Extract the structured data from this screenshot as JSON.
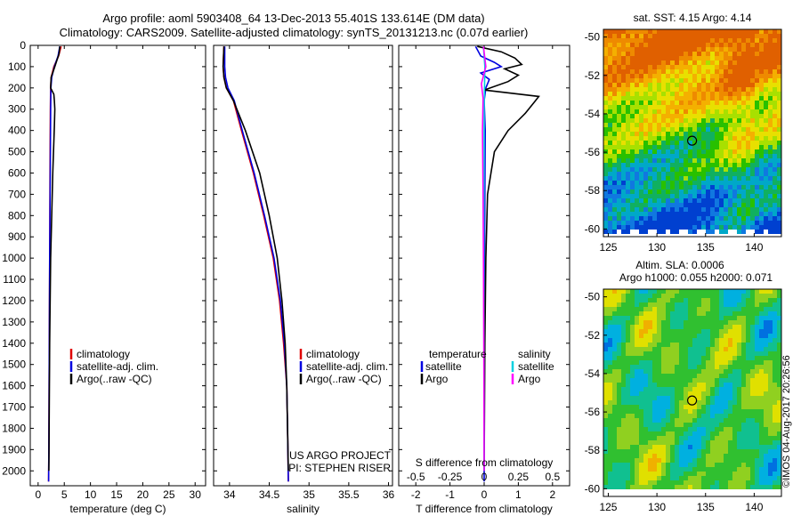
{
  "header": {
    "line1": "Argo profile: aoml 5903408_64 13-Dec-2013 55.401S 133.614E (DM data)",
    "line2": "Climatology: CARS2009. Satellite-adjusted climatology: synTS_20131213.nc (0.07d earlier)"
  },
  "stamp": "©IMOS 04-Aug-2017 20:26:56",
  "chart_data": [
    {
      "type": "line",
      "id": "temperature",
      "xlabel": "temperature (deg C)",
      "ylim": [
        2070,
        0
      ],
      "xlim": [
        -1.5,
        32
      ],
      "xticks": [
        0,
        5,
        10,
        15,
        20,
        25,
        30
      ],
      "yticks": [
        0,
        100,
        200,
        300,
        400,
        500,
        600,
        700,
        800,
        900,
        1000,
        1100,
        1200,
        1300,
        1400,
        1500,
        1600,
        1700,
        1800,
        1900,
        2000
      ],
      "legend": [
        "climatology",
        "satellite-adj. clim.",
        "Argo(..raw -QC)"
      ],
      "series": [
        {
          "name": "climatology",
          "color": "#e00000",
          "x": [
            4.4,
            3.9,
            3.0,
            2.5,
            2.4,
            2.35,
            2.3,
            2.25,
            2.2,
            2.15,
            2.1,
            2.05,
            2.0
          ],
          "y": [
            5,
            50,
            100,
            150,
            200,
            300,
            500,
            700,
            1000,
            1300,
            1600,
            1900,
            2050
          ]
        },
        {
          "name": "satellite-adj. clim.",
          "color": "#0000e0",
          "x": [
            4.15,
            3.8,
            3.1,
            2.6,
            2.45,
            2.4,
            2.35,
            2.3,
            2.2,
            2.15,
            2.1,
            2.05,
            2.0
          ],
          "y": [
            5,
            50,
            100,
            150,
            200,
            300,
            500,
            700,
            1000,
            1300,
            1600,
            1900,
            2050
          ]
        },
        {
          "name": "Argo(..raw -QC)",
          "color": "#000000",
          "x": [
            4.14,
            4.0,
            3.2,
            2.5,
            2.4,
            3.0,
            3.1,
            3.2,
            3.1,
            2.8,
            2.4,
            2.2,
            2.1,
            2.05
          ],
          "y": [
            5,
            40,
            100,
            150,
            200,
            230,
            260,
            300,
            380,
            600,
            1000,
            1400,
            1800,
            2000
          ]
        }
      ]
    },
    {
      "type": "line",
      "id": "salinity",
      "xlabel": "salinity",
      "ylim": [
        2070,
        0
      ],
      "xlim": [
        33.8,
        36.05
      ],
      "xticks": [
        34,
        34.5,
        35,
        35.5,
        36
      ],
      "legend": [
        "climatology",
        "satellite-adj. clim.",
        "Argo(..raw -QC)"
      ],
      "annotation": [
        "US ARGO PROJECT",
        "PI: STEPHEN RISER"
      ],
      "series": [
        {
          "name": "climatology",
          "color": "#e00000",
          "x": [
            33.93,
            33.92,
            33.93,
            33.96,
            34.05,
            34.15,
            34.3,
            34.43,
            34.55,
            34.63,
            34.68,
            34.72,
            34.73,
            34.74
          ],
          "y": [
            5,
            100,
            150,
            200,
            260,
            400,
            600,
            800,
            1000,
            1200,
            1400,
            1600,
            1800,
            2050
          ]
        },
        {
          "name": "satellite-adj. clim.",
          "color": "#0000e0",
          "x": [
            33.94,
            33.94,
            33.95,
            33.98,
            34.06,
            34.16,
            34.31,
            34.44,
            34.56,
            34.64,
            34.69,
            34.72,
            34.73,
            34.74
          ],
          "y": [
            5,
            100,
            150,
            200,
            260,
            400,
            600,
            800,
            1000,
            1200,
            1400,
            1600,
            1800,
            2050
          ]
        },
        {
          "name": "Argo(..raw -QC)",
          "color": "#000000",
          "x": [
            33.93,
            33.92,
            33.93,
            33.96,
            34.05,
            34.2,
            34.38,
            34.5,
            34.6,
            34.66,
            34.7,
            34.72,
            34.73,
            34.74
          ],
          "y": [
            5,
            100,
            150,
            200,
            260,
            400,
            600,
            800,
            1000,
            1200,
            1400,
            1600,
            1800,
            2000
          ]
        }
      ]
    },
    {
      "type": "line",
      "id": "difference",
      "xlabel": "T difference from climatology",
      "top_axis_label": "S difference from climatology",
      "ylim": [
        2070,
        0
      ],
      "xlim": [
        -2.5,
        2.5
      ],
      "xticks": [
        -2,
        -1,
        0,
        1,
        2
      ],
      "top_ticks": [
        -0.5,
        -0.25,
        0,
        0.25,
        0.5
      ],
      "legend_temperature": [
        "temperature",
        "satellite",
        "Argo"
      ],
      "legend_salinity": [
        "salinity",
        "satellite",
        "Argo"
      ],
      "series": [
        {
          "name": "temperature satellite",
          "color": "#0000e0",
          "x": [
            -0.25,
            -0.1,
            0.3,
            0.5,
            -0.1,
            0.15,
            0.05,
            0.0,
            0.03,
            0.02,
            0.01,
            0.0,
            0.0,
            0.0
          ],
          "y": [
            5,
            50,
            80,
            100,
            130,
            160,
            200,
            260,
            400,
            700,
            1000,
            1400,
            1800,
            2050
          ]
        },
        {
          "name": "temperature Argo",
          "color": "#000000",
          "x": [
            -0.2,
            0.5,
            0.9,
            1.1,
            0.6,
            1.0,
            0.7,
            0.0,
            1.6,
            1.5,
            1.2,
            0.7,
            0.3,
            0.1,
            0.05,
            0.02,
            0.0
          ],
          "y": [
            5,
            30,
            60,
            90,
            110,
            140,
            170,
            210,
            240,
            260,
            320,
            400,
            500,
            700,
            1000,
            1400,
            2000
          ]
        },
        {
          "name": "salinity satellite",
          "color": "#00d0e0",
          "x": [
            -0.02,
            0.02,
            0.01,
            0.0,
            0.0,
            -0.01,
            -0.005,
            0.0
          ],
          "y": [
            5,
            100,
            200,
            300,
            500,
            1000,
            1500,
            2000
          ]
        },
        {
          "name": "salinity Argo",
          "color": "#ff00ff",
          "x": [
            -0.02,
            0.05,
            -0.08,
            -0.03,
            -0.05,
            -0.03,
            -0.02,
            -0.01,
            0.0
          ],
          "y": [
            5,
            100,
            180,
            250,
            400,
            700,
            1000,
            1400,
            2000
          ]
        }
      ]
    },
    {
      "type": "heatmap",
      "id": "sst_map",
      "title": "sat. SST: 4.15 Argo: 4.14",
      "xlim": [
        124.5,
        142.8
      ],
      "ylim": [
        -60.4,
        -49.6
      ],
      "xticks": [
        125,
        130,
        135,
        140
      ],
      "yticks": [
        -50,
        -52,
        -54,
        -56,
        -58,
        -60
      ],
      "marker": {
        "lon": 133.614,
        "lat": -55.401
      }
    },
    {
      "type": "heatmap",
      "id": "sla_map",
      "title": "Altim. SLA: 0.0006",
      "subtitle": "Argo h1000: 0.055 h2000: 0.071",
      "xlim": [
        124.5,
        142.8
      ],
      "ylim": [
        -60.4,
        -49.6
      ],
      "xticks": [
        125,
        130,
        135,
        140
      ],
      "yticks": [
        -50,
        -52,
        -54,
        -56,
        -58,
        -60
      ],
      "marker": {
        "lon": 133.614,
        "lat": -55.401
      }
    }
  ]
}
